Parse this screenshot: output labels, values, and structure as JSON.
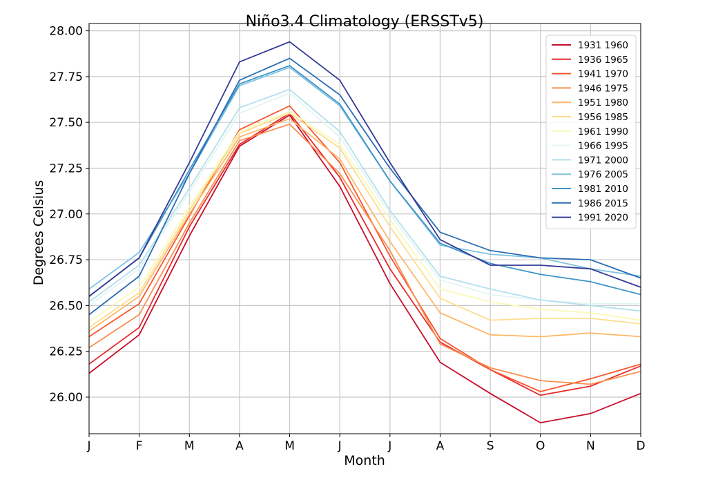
{
  "chart_data": {
    "type": "line",
    "title": "Niño3.4 Climatology (ERSSTv5)",
    "xlabel": "Month",
    "ylabel": "Degrees Celsius",
    "categories": [
      "J",
      "F",
      "M",
      "A",
      "M",
      "J",
      "J",
      "A",
      "S",
      "O",
      "N",
      "D"
    ],
    "ylim": [
      25.8,
      28.04
    ],
    "yticks": [
      "26.00",
      "26.25",
      "26.50",
      "26.75",
      "27.00",
      "27.25",
      "27.50",
      "27.75",
      "28.00"
    ],
    "grid": true,
    "legend_position": "top-right",
    "series": [
      {
        "name": "1931 1960",
        "color": "#c70c2c",
        "values": [
          26.13,
          26.34,
          26.88,
          27.37,
          27.54,
          27.15,
          26.62,
          26.19,
          26.02,
          25.86,
          25.91,
          26.02
        ]
      },
      {
        "name": "1936 1965",
        "color": "#e82a2a",
        "values": [
          26.18,
          26.38,
          26.93,
          27.38,
          27.55,
          27.2,
          26.7,
          26.3,
          26.15,
          26.01,
          26.06,
          26.17
        ]
      },
      {
        "name": "1941 1970",
        "color": "#f7562d",
        "values": [
          26.33,
          26.51,
          26.99,
          27.46,
          27.59,
          27.28,
          26.77,
          26.32,
          26.15,
          26.03,
          26.1,
          26.18
        ]
      },
      {
        "name": "1946 1975",
        "color": "#fa8f4f",
        "values": [
          26.27,
          26.45,
          26.95,
          27.4,
          27.49,
          27.22,
          26.8,
          26.29,
          26.16,
          26.09,
          26.07,
          26.14
        ]
      },
      {
        "name": "1951 1980",
        "color": "#fdb766",
        "values": [
          26.36,
          26.55,
          27.0,
          27.42,
          27.52,
          27.3,
          26.85,
          26.46,
          26.34,
          26.33,
          26.35,
          26.33
        ]
      },
      {
        "name": "1956 1985",
        "color": "#fedd8d",
        "values": [
          26.38,
          26.57,
          27.02,
          27.44,
          27.55,
          27.36,
          26.93,
          26.54,
          26.42,
          26.43,
          26.43,
          26.4
        ]
      },
      {
        "name": "1961 1990",
        "color": "#f9f9b8",
        "values": [
          26.41,
          26.6,
          27.04,
          27.45,
          27.56,
          27.38,
          26.97,
          26.59,
          26.52,
          26.48,
          26.46,
          26.42
        ]
      },
      {
        "name": "1966 1995",
        "color": "#e3f4f3",
        "values": [
          26.5,
          26.7,
          27.12,
          27.55,
          27.66,
          27.42,
          27.0,
          26.64,
          26.56,
          26.53,
          26.51,
          26.51
        ]
      },
      {
        "name": "1971 2000",
        "color": "#b3e0ec",
        "values": [
          26.52,
          26.72,
          27.14,
          27.58,
          27.68,
          27.45,
          27.02,
          26.66,
          26.59,
          26.53,
          26.5,
          26.47
        ]
      },
      {
        "name": "1976 2005",
        "color": "#7fc3e1",
        "values": [
          26.59,
          26.79,
          27.22,
          27.7,
          27.8,
          27.59,
          27.18,
          26.83,
          26.78,
          26.76,
          26.7,
          26.66
        ]
      },
      {
        "name": "1981 2010",
        "color": "#3c94c9",
        "values": [
          26.55,
          26.76,
          27.24,
          27.71,
          27.81,
          27.6,
          27.18,
          26.84,
          26.73,
          26.67,
          26.63,
          26.56
        ]
      },
      {
        "name": "1986 2015",
        "color": "#2b6db5",
        "values": [
          26.45,
          26.66,
          27.22,
          27.73,
          27.85,
          27.65,
          27.25,
          26.9,
          26.8,
          26.76,
          26.75,
          26.65
        ]
      },
      {
        "name": "1991 2020",
        "color": "#333a96",
        "values": [
          26.55,
          26.76,
          27.28,
          27.83,
          27.94,
          27.73,
          27.28,
          26.86,
          26.72,
          26.72,
          26.7,
          26.6
        ]
      }
    ]
  }
}
